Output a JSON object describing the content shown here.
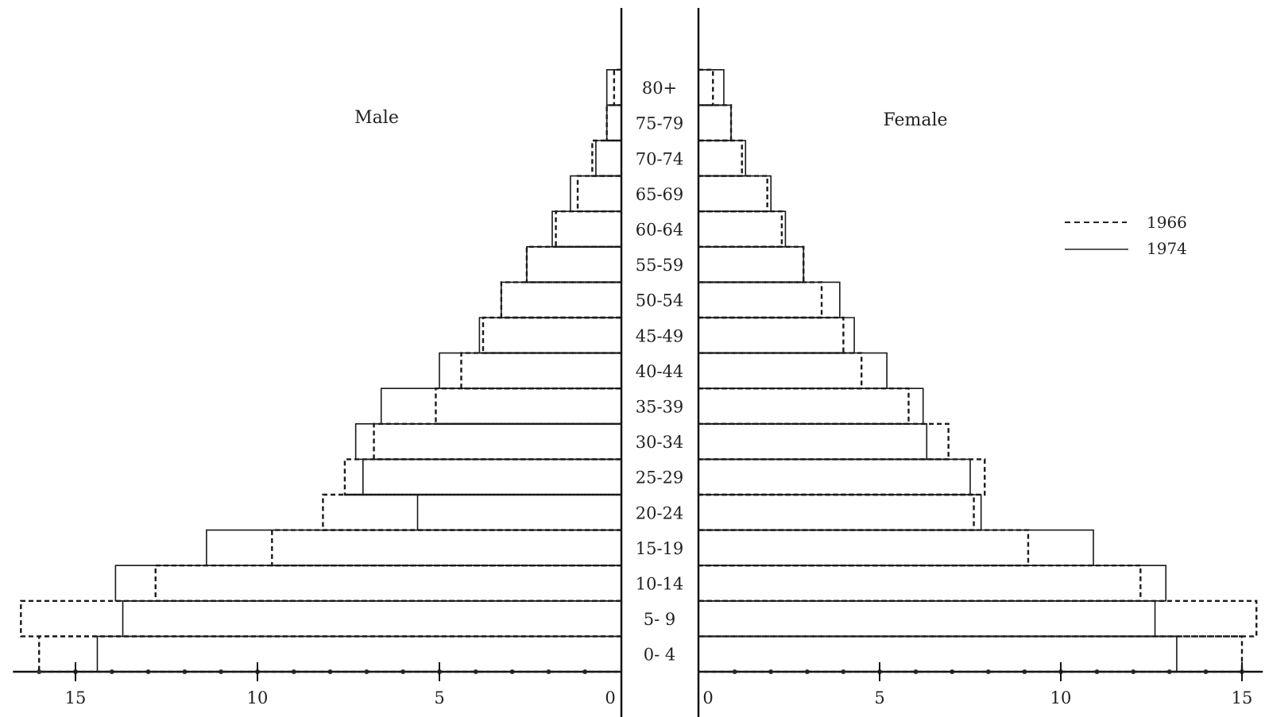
{
  "chart_data": {
    "type": "bar",
    "subtype": "population-pyramid",
    "units": "percent",
    "male_label": "Male",
    "female_label": "Female",
    "categories": [
      "0- 4",
      "5- 9",
      "10-14",
      "15-19",
      "20-24",
      "25-29",
      "30-34",
      "35-39",
      "40-44",
      "45-49",
      "50-54",
      "55-59",
      "60-64",
      "65-69",
      "70-74",
      "75-79",
      "80+"
    ],
    "male": {
      "ticks": [
        {
          "value": 0,
          "label": "0"
        },
        {
          "value": 5,
          "label": "5"
        },
        {
          "value": 10,
          "label": "10"
        },
        {
          "value": 15,
          "label": "15"
        }
      ],
      "xlim": [
        0,
        16.5
      ],
      "series": [
        {
          "name": "1966",
          "style": "dashed",
          "values": [
            16.0,
            16.5,
            12.8,
            9.6,
            8.2,
            7.6,
            6.8,
            5.1,
            4.4,
            3.8,
            3.3,
            2.6,
            1.8,
            1.2,
            0.8,
            0.4,
            0.2
          ]
        },
        {
          "name": "1974",
          "style": "solid",
          "values": [
            14.4,
            13.7,
            13.9,
            11.4,
            5.6,
            7.1,
            7.3,
            6.6,
            5.0,
            3.9,
            3.3,
            2.6,
            1.9,
            1.4,
            0.7,
            0.4,
            0.4
          ]
        }
      ]
    },
    "female": {
      "ticks": [
        {
          "value": 0,
          "label": "0"
        },
        {
          "value": 5,
          "label": "5"
        },
        {
          "value": 10,
          "label": "10"
        },
        {
          "value": 15,
          "label": "15"
        }
      ],
      "xlim": [
        0,
        15.4
      ],
      "series": [
        {
          "name": "1966",
          "style": "dashed",
          "values": [
            15.0,
            15.4,
            12.2,
            9.1,
            7.6,
            7.9,
            6.9,
            5.8,
            4.5,
            4.0,
            3.4,
            2.9,
            2.3,
            1.9,
            1.2,
            0.9,
            0.4
          ]
        },
        {
          "name": "1974",
          "style": "solid",
          "values": [
            13.2,
            12.6,
            12.9,
            10.9,
            7.8,
            7.5,
            6.3,
            6.2,
            5.2,
            4.3,
            3.9,
            2.9,
            2.4,
            2.0,
            1.3,
            0.9,
            0.7
          ]
        }
      ]
    },
    "legend": {
      "position": "right",
      "entries": [
        {
          "label": "1966",
          "style": "dashed"
        },
        {
          "label": "1974",
          "style": "solid"
        }
      ]
    }
  }
}
